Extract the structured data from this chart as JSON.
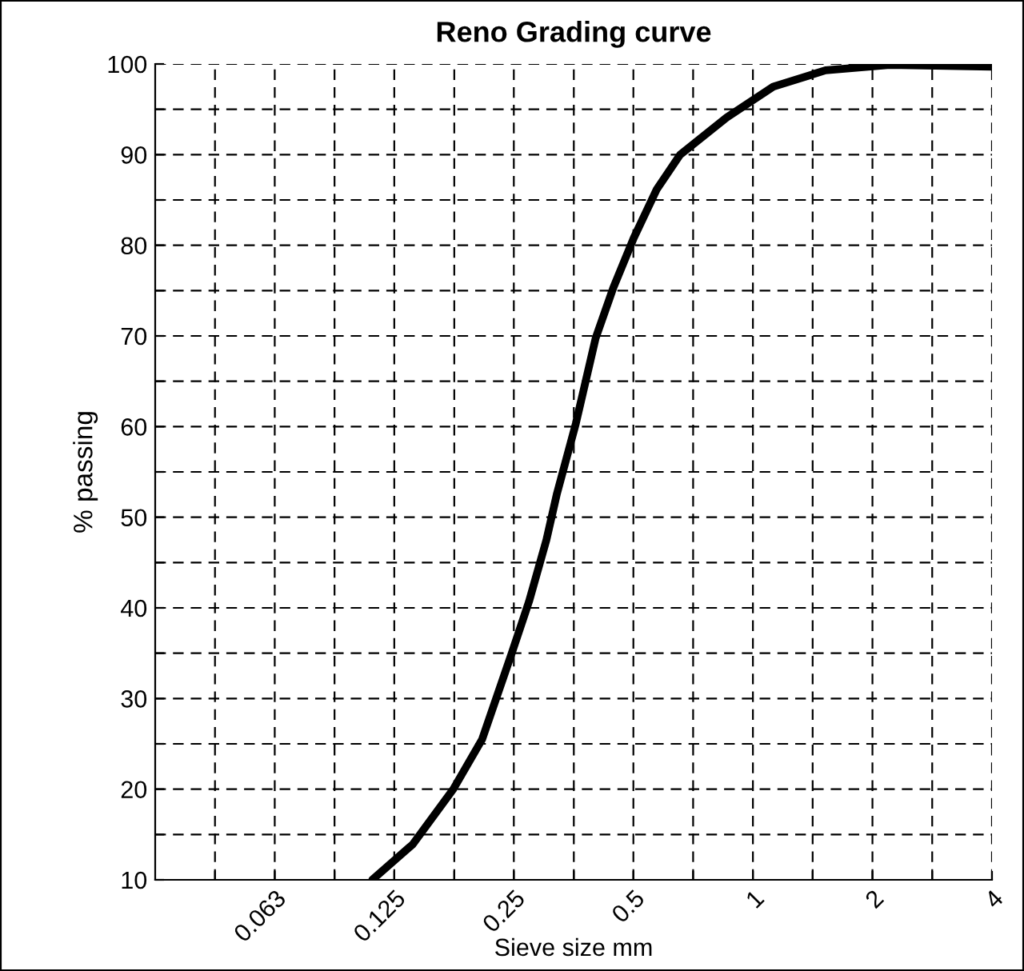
{
  "chart_data": {
    "type": "line",
    "title": "Reno Grading curve",
    "xlabel": "Sieve size mm",
    "ylabel": "% passing",
    "log": "x",
    "series": [
      {
        "color": "#000000",
        "x": [
          0.11,
          0.139,
          0.176,
          0.208,
          0.247,
          0.273,
          0.302,
          0.321,
          0.358,
          0.402,
          0.445,
          0.501,
          0.573,
          0.656,
          0.859,
          1.125,
          1.524,
          2.21,
          4
        ],
        "values": [
          10,
          13.9,
          20,
          25.5,
          35,
          40.7,
          47.5,
          52.6,
          60.3,
          69.8,
          75.3,
          80.8,
          86.2,
          90,
          94.1,
          97.5,
          99.3,
          99.9,
          99.7
        ]
      }
    ],
    "xlim": [
      0.03125,
      4
    ],
    "xticks": [
      {
        "value": 0.0442,
        "label": null
      },
      {
        "value": 0.0625,
        "label": "0.063"
      },
      {
        "value": 0.0884,
        "label": null
      },
      0.125,
      {
        "value": 0.177,
        "label": null
      },
      0.25,
      {
        "value": 0.354,
        "label": null
      },
      0.5,
      {
        "value": 0.707,
        "label": null
      },
      1,
      {
        "value": 1.414,
        "label": null
      },
      2,
      {
        "value": 2.828,
        "label": null
      },
      4
    ],
    "ylim": [
      10,
      100
    ],
    "yticks": [
      10,
      {
        "value": 15,
        "label": null
      },
      20,
      {
        "value": 25,
        "label": null
      },
      30,
      {
        "value": 35,
        "label": null
      },
      40,
      {
        "value": 45,
        "label": null
      },
      50,
      {
        "value": 55,
        "label": null
      },
      60,
      {
        "value": 65,
        "label": null
      },
      70,
      {
        "value": 75,
        "label": null
      },
      80,
      {
        "value": 85,
        "label": null
      },
      90,
      {
        "value": 95,
        "label": null
      },
      100
    ],
    "grid": true,
    "legend": false,
    "marker": "none",
    "line_style": "solid"
  }
}
